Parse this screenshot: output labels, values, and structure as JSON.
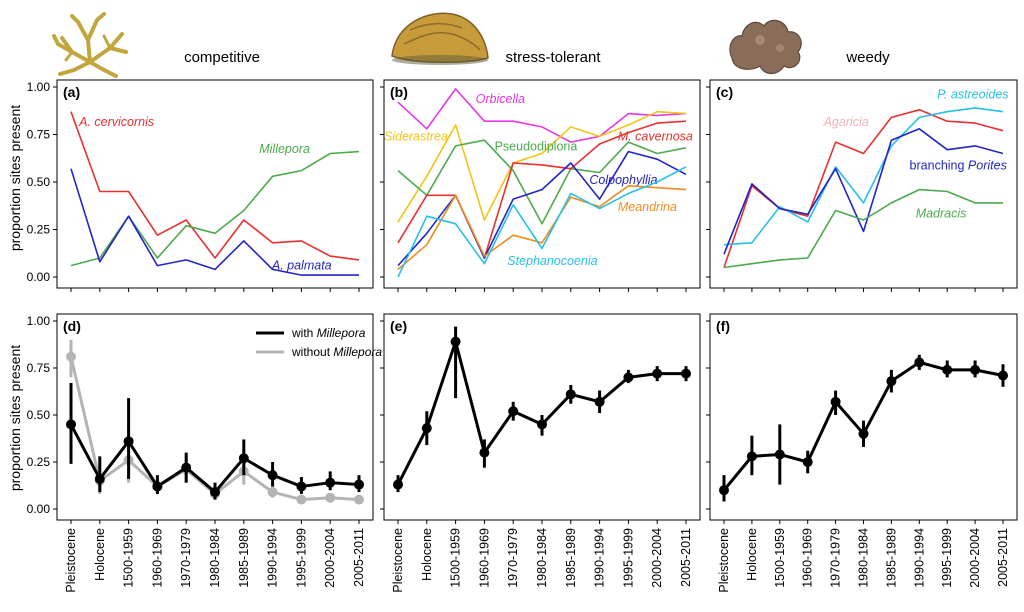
{
  "figure": {
    "ylabel": "proportion sites present",
    "strategies": [
      "competitive",
      "stress-tolerant",
      "weedy"
    ],
    "categories": [
      "Pleistocene",
      "Holocene",
      "1500-1959",
      "1960-1969",
      "1970-1979",
      "1980-1984",
      "1985-1989",
      "1990-1994",
      "1995-1999",
      "2000-2004",
      "2005-2011"
    ],
    "yticks": [
      "0.00",
      "0.25",
      "0.50",
      "0.75",
      "1.00"
    ]
  },
  "legend": {
    "with": {
      "prefix": "with ",
      "taxon": "Millepora"
    },
    "without": {
      "prefix": "without ",
      "taxon": "Millepora"
    }
  },
  "chart_data": [
    {
      "type": "line",
      "panel": "(a)",
      "title": "competitive",
      "ylabel": "proportion sites present",
      "ylim": [
        0,
        1
      ],
      "categories": [
        "Pleistocene",
        "Holocene",
        "1500-1959",
        "1960-1969",
        "1970-1979",
        "1980-1984",
        "1985-1989",
        "1990-1994",
        "1995-1999",
        "2000-2004",
        "2005-2011"
      ],
      "series": [
        {
          "name": "A. cervicornis",
          "label": "A. cervicornis",
          "color": "#e8302e",
          "values": [
            0.87,
            0.45,
            0.45,
            0.22,
            0.3,
            0.1,
            0.3,
            0.18,
            0.19,
            0.11,
            0.09
          ]
        },
        {
          "name": "Millepora",
          "label": "Millepora",
          "color": "#4caa4c",
          "values": [
            0.06,
            0.1,
            0.32,
            0.1,
            0.27,
            0.23,
            0.35,
            0.53,
            0.56,
            0.65,
            0.66
          ]
        },
        {
          "name": "A. palmata",
          "label": "A. palmata",
          "color": "#2424c8",
          "values": [
            0.57,
            0.08,
            0.32,
            0.06,
            0.09,
            0.04,
            0.19,
            0.04,
            0.01,
            0.01,
            0.01
          ]
        }
      ]
    },
    {
      "type": "line",
      "panel": "(b)",
      "title": "stress-tolerant",
      "ylim": [
        0,
        1
      ],
      "categories": [
        "Pleistocene",
        "Holocene",
        "1500-1959",
        "1960-1969",
        "1970-1979",
        "1980-1984",
        "1985-1989",
        "1990-1994",
        "1995-1999",
        "2000-2004",
        "2005-2011"
      ],
      "series": [
        {
          "name": "Orbicella",
          "label": "Orbicella",
          "color": "#e637e6",
          "values": [
            0.92,
            0.78,
            0.99,
            0.82,
            0.82,
            0.79,
            0.71,
            0.74,
            0.86,
            0.85,
            0.86
          ]
        },
        {
          "name": "Siderastrea",
          "label": "Siderastrea",
          "color": "#f2c418",
          "values": [
            0.29,
            0.53,
            0.8,
            0.3,
            0.6,
            0.65,
            0.79,
            0.74,
            0.8,
            0.87,
            0.86
          ]
        },
        {
          "name": "Pseudodiploria",
          "label": "Pseudodiploria",
          "color": "#4caa4c",
          "values": [
            0.56,
            0.43,
            0.69,
            0.72,
            0.56,
            0.28,
            0.57,
            0.55,
            0.71,
            0.65,
            0.68
          ]
        },
        {
          "name": "M. cavernosa",
          "label": "M. cavernosa",
          "color": "#e8302e",
          "values": [
            0.18,
            0.43,
            0.43,
            0.1,
            0.6,
            0.59,
            0.57,
            0.7,
            0.76,
            0.81,
            0.82
          ]
        },
        {
          "name": "Colpophyllia",
          "label": "Colpophyllia",
          "color": "#2424c8",
          "values": [
            0.06,
            0.23,
            0.43,
            0.1,
            0.41,
            0.46,
            0.6,
            0.41,
            0.66,
            0.62,
            0.54
          ]
        },
        {
          "name": "Meandrina",
          "label": "Meandrina",
          "color": "#f28c1e",
          "values": [
            0.04,
            0.17,
            0.43,
            0.11,
            0.22,
            0.18,
            0.42,
            0.37,
            0.48,
            0.47,
            0.46
          ]
        },
        {
          "name": "Stephanocoenia",
          "label": "Stephanocoenia",
          "color": "#26c0e8",
          "values": [
            0.0,
            0.32,
            0.28,
            0.07,
            0.38,
            0.15,
            0.44,
            0.36,
            0.44,
            0.5,
            0.58
          ]
        }
      ]
    },
    {
      "type": "line",
      "panel": "(c)",
      "title": "weedy",
      "ylim": [
        0,
        1
      ],
      "categories": [
        "Pleistocene",
        "Holocene",
        "1500-1959",
        "1960-1969",
        "1970-1979",
        "1980-1984",
        "1985-1989",
        "1990-1994",
        "1995-1999",
        "2000-2004",
        "2005-2011"
      ],
      "series": [
        {
          "name": "Agaricia",
          "label": "Agaricia",
          "color": "#e8302e",
          "values": [
            0.05,
            0.48,
            0.36,
            0.32,
            0.71,
            0.65,
            0.84,
            0.88,
            0.82,
            0.81,
            0.77
          ]
        },
        {
          "name": "P. astreoides",
          "label": "P. astreoides",
          "color": "#26c0e8",
          "values": [
            0.17,
            0.18,
            0.37,
            0.29,
            0.58,
            0.39,
            0.69,
            0.84,
            0.87,
            0.89,
            0.87
          ]
        },
        {
          "name": "branching Porites",
          "label": "branching Porites",
          "color": "#2424c8",
          "values": [
            0.12,
            0.49,
            0.36,
            0.33,
            0.57,
            0.24,
            0.72,
            0.78,
            0.67,
            0.69,
            0.65
          ]
        },
        {
          "name": "Madracis",
          "label": "Madracis",
          "color": "#4caa4c",
          "values": [
            0.05,
            0.07,
            0.09,
            0.1,
            0.35,
            0.3,
            0.39,
            0.46,
            0.45,
            0.39,
            0.39
          ]
        }
      ]
    },
    {
      "type": "line",
      "panel": "(d)",
      "ylabel": "proportion sites present",
      "ylim": [
        0,
        1
      ],
      "error_bars": true,
      "categories": [
        "Pleistocene",
        "Holocene",
        "1500-1959",
        "1960-1969",
        "1970-1979",
        "1980-1984",
        "1985-1989",
        "1990-1994",
        "1995-1999",
        "2000-2004",
        "2005-2011"
      ],
      "series": [
        {
          "name": "without Millepora",
          "color": "#b4b4b4",
          "values": [
            0.81,
            0.15,
            0.26,
            0.12,
            0.21,
            0.08,
            0.2,
            0.09,
            0.05,
            0.06,
            0.05
          ],
          "lower": [
            0.7,
            0.08,
            0.14,
            0.08,
            0.14,
            0.05,
            0.13,
            0.06,
            0.03,
            0.04,
            0.03
          ],
          "upper": [
            0.9,
            0.24,
            0.44,
            0.17,
            0.28,
            0.12,
            0.27,
            0.13,
            0.07,
            0.08,
            0.07
          ]
        },
        {
          "name": "with Millepora",
          "color": "#000000",
          "values": [
            0.45,
            0.16,
            0.36,
            0.12,
            0.22,
            0.09,
            0.27,
            0.18,
            0.12,
            0.14,
            0.13
          ],
          "lower": [
            0.24,
            0.09,
            0.16,
            0.08,
            0.14,
            0.05,
            0.18,
            0.12,
            0.08,
            0.1,
            0.09
          ],
          "upper": [
            0.67,
            0.28,
            0.59,
            0.18,
            0.3,
            0.14,
            0.37,
            0.25,
            0.17,
            0.2,
            0.18
          ]
        }
      ]
    },
    {
      "type": "line",
      "panel": "(e)",
      "ylim": [
        0,
        1
      ],
      "error_bars": true,
      "categories": [
        "Pleistocene",
        "Holocene",
        "1500-1959",
        "1960-1969",
        "1970-1979",
        "1980-1984",
        "1985-1989",
        "1990-1994",
        "1995-1999",
        "2000-2004",
        "2005-2011"
      ],
      "series": [
        {
          "color": "#000000",
          "values": [
            0.13,
            0.43,
            0.89,
            0.3,
            0.52,
            0.45,
            0.61,
            0.57,
            0.7,
            0.72,
            0.72
          ],
          "lower": [
            0.09,
            0.34,
            0.59,
            0.22,
            0.47,
            0.39,
            0.56,
            0.51,
            0.67,
            0.68,
            0.68
          ],
          "upper": [
            0.18,
            0.52,
            0.97,
            0.37,
            0.57,
            0.5,
            0.66,
            0.63,
            0.74,
            0.76,
            0.76
          ]
        }
      ]
    },
    {
      "type": "line",
      "panel": "(f)",
      "ylim": [
        0,
        1
      ],
      "error_bars": true,
      "categories": [
        "Pleistocene",
        "Holocene",
        "1500-1959",
        "1960-1969",
        "1970-1979",
        "1980-1984",
        "1985-1989",
        "1990-1994",
        "1995-1999",
        "2000-2004",
        "2005-2011"
      ],
      "series": [
        {
          "color": "#000000",
          "values": [
            0.1,
            0.28,
            0.29,
            0.25,
            0.57,
            0.4,
            0.68,
            0.78,
            0.74,
            0.74,
            0.71
          ],
          "lower": [
            0.04,
            0.18,
            0.13,
            0.19,
            0.5,
            0.33,
            0.62,
            0.74,
            0.7,
            0.7,
            0.65
          ],
          "upper": [
            0.18,
            0.39,
            0.45,
            0.31,
            0.63,
            0.47,
            0.74,
            0.82,
            0.79,
            0.79,
            0.77
          ]
        }
      ]
    }
  ]
}
